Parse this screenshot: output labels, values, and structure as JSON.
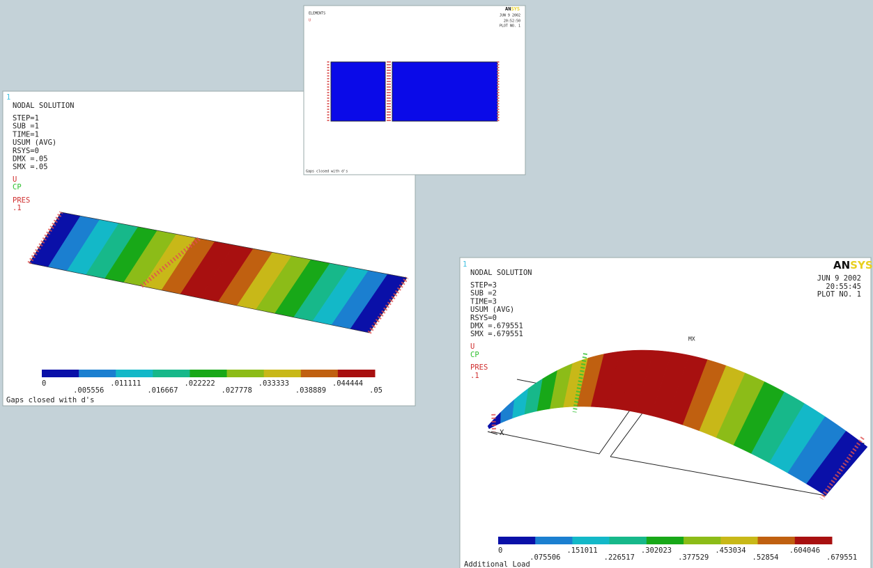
{
  "contour_colors": [
    "#0a10a8",
    "#1b7fd0",
    "#13b8c8",
    "#17b88a",
    "#18a818",
    "#8cbc18",
    "#c8b818",
    "#c06010",
    "#a81010"
  ],
  "top_panel": {
    "title": "ELEMENTS",
    "sub": "U",
    "logo_a": "AN",
    "logo_b": "SYS",
    "date": "JUN  9 2002",
    "time": "20:52:50",
    "plot": "PLOT NO.   1",
    "caption": "Gaps closed with d's"
  },
  "left_panel": {
    "index": "1",
    "title": "NODAL SOLUTION",
    "info": [
      "STEP=1",
      "SUB =1",
      "TIME=1",
      "USUM      (AVG)",
      "RSYS=0",
      "DMX =.05",
      "SMX =.05"
    ],
    "legend_u": "U",
    "legend_cp": "CP",
    "legend_pres": "PRES",
    "pres_value": ".1",
    "contour_labels": [
      "0",
      ".005556",
      ".011111",
      ".016667",
      ".022222",
      ".027778",
      ".033333",
      ".038889",
      ".044444",
      ".05"
    ],
    "caption": "Gaps closed with d's"
  },
  "right_panel": {
    "index": "1",
    "title": "NODAL SOLUTION",
    "logo_a": "AN",
    "logo_b": "SYS",
    "date": "JUN  9 2002",
    "time": "20:55:45",
    "plot": "PLOT NO.   1",
    "info": [
      "STEP=3",
      "SUB =2",
      "TIME=3",
      "USUM      (AVG)",
      "RSYS=0",
      "DMX =.679551",
      "SMX =.679551"
    ],
    "legend_u": "U",
    "legend_cp": "CP",
    "legend_pres": "PRES",
    "pres_value": ".1",
    "max_marker": "MX",
    "axis_label": "X",
    "contour_labels": [
      "0",
      ".075506",
      ".151011",
      ".226517",
      ".302023",
      ".377529",
      ".453034",
      ".52854",
      ".604046",
      ".679551"
    ],
    "caption": "Additional Load"
  }
}
